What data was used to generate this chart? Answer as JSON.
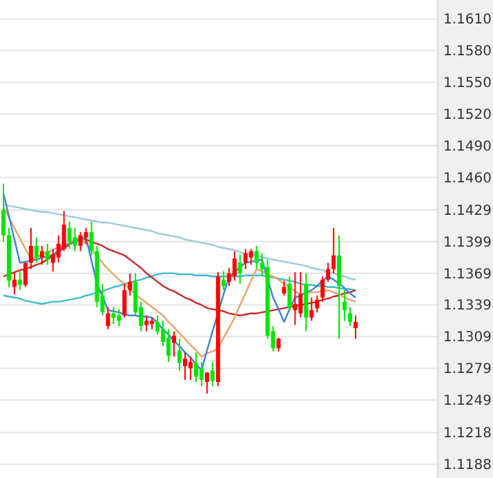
{
  "chart_data": {
    "type": "candlestick",
    "categories": [
      null,
      null,
      null,
      null,
      null,
      null,
      null,
      null,
      null,
      null,
      null,
      null,
      null,
      null,
      null,
      null,
      null,
      null,
      null,
      null,
      null,
      null,
      null,
      null,
      null,
      null,
      null,
      null,
      null,
      null,
      null,
      null,
      null,
      null,
      null,
      null,
      null,
      null,
      null,
      null,
      null,
      null,
      null,
      null,
      null,
      null,
      null,
      null,
      null,
      null,
      null,
      null,
      null,
      null,
      null,
      null,
      null,
      null,
      null,
      null,
      null,
      null,
      null,
      null,
      null
    ],
    "ohlc": [
      [
        1.1429,
        1.1454,
        1.1399,
        1.1405
      ],
      [
        1.1405,
        1.1412,
        1.1356,
        1.1362
      ],
      [
        1.1356,
        1.1369,
        1.1349,
        1.1363
      ],
      [
        1.1363,
        1.1371,
        1.1353,
        1.1358
      ],
      [
        1.1358,
        1.1379,
        1.1356,
        1.1379
      ],
      [
        1.1379,
        1.1412,
        1.1373,
        1.1395
      ],
      [
        1.1395,
        1.1403,
        1.1379,
        1.1384
      ],
      [
        1.1384,
        1.1395,
        1.1377,
        1.139
      ],
      [
        1.139,
        1.1397,
        1.1377,
        1.1382
      ],
      [
        1.1379,
        1.1392,
        1.1371,
        1.1387
      ],
      [
        1.1384,
        1.1405,
        1.1379,
        1.1397
      ],
      [
        1.1392,
        1.1428,
        1.139,
        1.1415
      ],
      [
        1.1412,
        1.1418,
        1.1392,
        1.1399
      ],
      [
        1.1403,
        1.1412,
        1.139,
        1.1395
      ],
      [
        1.1395,
        1.1408,
        1.139,
        1.1405
      ],
      [
        1.1403,
        1.1412,
        1.1397,
        1.1408
      ],
      [
        1.1408,
        1.1418,
        1.1386,
        1.139
      ],
      [
        1.139,
        1.1395,
        1.1337,
        1.1342
      ],
      [
        1.1348,
        1.1359,
        1.1329,
        1.1332
      ],
      [
        1.1319,
        1.1337,
        1.1316,
        1.1331
      ],
      [
        1.1331,
        1.1337,
        1.1321,
        1.1327
      ],
      [
        1.1329,
        1.1335,
        1.1319,
        1.1324
      ],
      [
        1.1329,
        1.1359,
        1.1327,
        1.1353
      ],
      [
        1.1353,
        1.1369,
        1.1348,
        1.1361
      ],
      [
        1.1361,
        1.1369,
        1.1329,
        1.1332
      ],
      [
        1.1337,
        1.1342,
        1.1314,
        1.1319
      ],
      [
        1.132,
        1.1329,
        1.1314,
        1.1324
      ],
      [
        1.1321,
        1.1327,
        1.1316,
        1.1324
      ],
      [
        1.1323,
        1.1329,
        1.1311,
        1.1314
      ],
      [
        1.1316,
        1.1324,
        1.13,
        1.1304
      ],
      [
        1.1308,
        1.1316,
        1.1285,
        1.1291
      ],
      [
        1.1303,
        1.1314,
        1.129,
        1.131
      ],
      [
        1.1296,
        1.1307,
        1.1277,
        1.1284
      ],
      [
        1.1281,
        1.1294,
        1.1268,
        1.1288
      ],
      [
        1.1279,
        1.129,
        1.1268,
        1.1285
      ],
      [
        1.1284,
        1.1294,
        1.1266,
        1.1271
      ],
      [
        1.1279,
        1.1285,
        1.1262,
        1.1268
      ],
      [
        1.1266,
        1.1275,
        1.1255,
        1.1275
      ],
      [
        1.1277,
        1.1285,
        1.1262,
        1.1267
      ],
      [
        1.1266,
        1.137,
        1.1262,
        1.1366
      ],
      [
        1.1363,
        1.1371,
        1.1353,
        1.1357
      ],
      [
        1.1361,
        1.1374,
        1.1357,
        1.1369
      ],
      [
        1.1366,
        1.139,
        1.1362,
        1.1383
      ],
      [
        1.1379,
        1.1387,
        1.1359,
        1.1369
      ],
      [
        1.1379,
        1.1392,
        1.1373,
        1.1388
      ],
      [
        1.1384,
        1.1392,
        1.1377,
        1.139
      ],
      [
        1.139,
        1.1395,
        1.1373,
        1.1379
      ],
      [
        1.1379,
        1.1388,
        1.1366,
        1.1373
      ],
      [
        1.1375,
        1.1382,
        1.1307,
        1.131
      ],
      [
        1.1314,
        1.1319,
        1.1295,
        1.1298
      ],
      [
        1.1298,
        1.1308,
        1.1295,
        1.1307
      ],
      [
        1.135,
        1.1362,
        1.1348,
        1.1356
      ],
      [
        1.1359,
        1.1366,
        1.1334,
        1.1336
      ],
      [
        1.1334,
        1.137,
        1.132,
        1.134
      ],
      [
        1.1331,
        1.137,
        1.1327,
        1.1349
      ],
      [
        1.1359,
        1.1369,
        1.1314,
        1.1327
      ],
      [
        1.1327,
        1.1346,
        1.1324,
        1.1334
      ],
      [
        1.1336,
        1.1348,
        1.1332,
        1.1344
      ],
      [
        1.1346,
        1.1366,
        1.1342,
        1.1363
      ],
      [
        1.1363,
        1.1379,
        1.1361,
        1.1373
      ],
      [
        1.1373,
        1.1412,
        1.1369,
        1.1386
      ],
      [
        1.1386,
        1.1405,
        1.1307,
        1.1357
      ],
      [
        1.1342,
        1.1353,
        1.1324,
        1.1334
      ],
      [
        1.1331,
        1.1337,
        1.1319,
        1.1323
      ],
      [
        1.1317,
        1.1329,
        1.1307,
        1.1323
      ]
    ],
    "colors": [
      "#00e600",
      "#00e600",
      "#ff0000",
      "#00e600",
      "#ff0000",
      "#ff0000",
      "#00e600",
      "#ff0000",
      "#00e600",
      "#ff0000",
      "#ff0000",
      "#ff0000",
      "#00e600",
      "#00e600",
      "#ff0000",
      "#ff0000",
      "#00e600",
      "#00e600",
      "#00e600",
      "#ff0000",
      "#00e600",
      "#00e600",
      "#ff0000",
      "#ff0000",
      "#00e600",
      "#00e600",
      "#ff0000",
      "#ff0000",
      "#00e600",
      "#00e600",
      "#00e600",
      "#ff0000",
      "#00e600",
      "#ff0000",
      "#ff0000",
      "#00e600",
      "#00e600",
      "#ff0000",
      "#00e600",
      "#ff0000",
      "#00e600",
      "#ff0000",
      "#ff0000",
      "#00e600",
      "#ff0000",
      "#ff0000",
      "#00e600",
      "#00e600",
      "#00e600",
      "#00e600",
      "#ff0000",
      "#ff0000",
      "#00e600",
      "#ff0000",
      "#ff0000",
      "#00e600",
      "#ff0000",
      "#ff0000",
      "#ff0000",
      "#ff0000",
      "#ff0000",
      "#00e600",
      "#00e600",
      "#00e600",
      "#ff0000"
    ],
    "series": [
      {
        "type": "line",
        "color": "#9cc8dc",
        "values": [
          1.1434,
          1.1433,
          1.1432,
          1.1431,
          1.143,
          1.1429,
          1.1428,
          1.1427,
          1.1427,
          1.1426,
          1.1425,
          1.1424,
          1.1423,
          1.1422,
          1.1421,
          1.142,
          1.1419,
          1.1418,
          1.1417,
          1.1417,
          1.1416,
          1.1415,
          1.1414,
          1.1413,
          1.1412,
          1.1411,
          1.141,
          1.1409,
          1.1407,
          1.1406,
          1.1405,
          1.1404,
          1.1403,
          1.1401,
          1.14,
          1.1399,
          1.1398,
          1.1397,
          1.1396,
          1.1394,
          1.1393,
          1.1392,
          1.1391,
          1.1389,
          1.1388,
          1.1387,
          1.1386,
          1.1384,
          1.1383,
          1.1382,
          1.1381,
          1.138,
          1.1379,
          1.1378,
          1.1377,
          1.1376,
          1.1374,
          1.1373,
          1.1372,
          1.137,
          1.1369,
          1.1367,
          1.1366,
          1.1364,
          1.1363
        ]
      },
      {
        "type": "line",
        "color": "#3cbccc",
        "values": [
          1.1348,
          1.1347,
          1.1346,
          1.1345,
          1.1343,
          1.1342,
          1.1341,
          1.134,
          1.1341,
          1.1342,
          1.1342,
          1.1343,
          1.1344,
          1.1345,
          1.1346,
          1.1348,
          1.1349,
          1.1351,
          1.1352,
          1.1354,
          1.1356,
          1.1357,
          1.1359,
          1.136,
          1.1362,
          1.1363,
          1.1365,
          1.1366,
          1.1368,
          1.1369,
          1.1369,
          1.1369,
          1.1368,
          1.1368,
          1.1368,
          1.1367,
          1.1367,
          1.1367,
          1.1366,
          1.1366,
          1.1366,
          1.1366,
          1.1366,
          1.1366,
          1.1367,
          1.1367,
          1.1367,
          1.1367,
          1.1366,
          1.1365,
          1.1364,
          1.1363,
          1.1362,
          1.1361,
          1.1359,
          1.1358,
          1.1358,
          1.1357,
          1.1357,
          1.1356,
          1.1356,
          1.1355,
          1.1354,
          1.1354,
          1.1353
        ]
      },
      {
        "type": "line",
        "color": "#c8282a",
        "values": [
          1.1366,
          1.1368,
          1.137,
          1.1372,
          1.1373,
          1.1375,
          1.1377,
          1.1379,
          1.1382,
          1.1386,
          1.1389,
          1.1393,
          1.1396,
          1.14,
          1.1403,
          1.1401,
          1.1399,
          1.1397,
          1.1395,
          1.1392,
          1.139,
          1.1388,
          1.1386,
          1.1382,
          1.1378,
          1.1374,
          1.1369,
          1.1365,
          1.1361,
          1.1357,
          1.1354,
          1.1352,
          1.1349,
          1.1346,
          1.1344,
          1.1341,
          1.1339,
          1.1336,
          1.1335,
          1.1334,
          1.1333,
          1.1331,
          1.133,
          1.1329,
          1.133,
          1.1331,
          1.1331,
          1.1332,
          1.1333,
          1.1334,
          1.1335,
          1.1336,
          1.1337,
          1.1338,
          1.1339,
          1.134,
          1.1341,
          1.1342,
          1.1344,
          1.1345,
          1.1347,
          1.1348,
          1.135,
          1.1351,
          1.1353
        ]
      },
      {
        "type": "line",
        "color": "#e8a468",
        "values": [
          1.1432,
          1.1422,
          1.1412,
          1.1402,
          1.1392,
          1.1382,
          1.1384,
          1.1387,
          1.1389,
          1.1391,
          1.1394,
          1.1396,
          1.1398,
          1.1401,
          1.1403,
          1.1397,
          1.1391,
          1.1385,
          1.1379,
          1.1373,
          1.1368,
          1.1363,
          1.1359,
          1.1354,
          1.1349,
          1.1345,
          1.1341,
          1.1337,
          1.1333,
          1.1329,
          1.1323,
          1.1318,
          1.1312,
          1.1307,
          1.1301,
          1.1296,
          1.129,
          1.1293,
          1.1295,
          1.1298,
          1.1308,
          1.1317,
          1.1327,
          1.1339,
          1.135,
          1.1362,
          1.1373,
          1.1371,
          1.1368,
          1.1366,
          1.1363,
          1.1359,
          1.1356,
          1.1352,
          1.1349,
          1.135,
          1.1351,
          1.1351,
          1.1352,
          1.1353,
          1.1351,
          1.1349,
          1.1346,
          1.1344,
          1.1342
        ]
      },
      {
        "type": "line",
        "color": "#3c82d8",
        "values": [
          1.1445,
          1.1423,
          1.1401,
          1.1379,
          1.138,
          1.1381,
          1.1382,
          1.1384,
          1.1385,
          1.1386,
          1.1391,
          1.1395,
          1.1397,
          1.1399,
          1.1401,
          1.1403,
          1.1381,
          1.1359,
          1.1347,
          1.1334,
          1.1333,
          1.1332,
          1.133,
          1.1329,
          1.1329,
          1.1328,
          1.1328,
          1.1327,
          1.1322,
          1.1316,
          1.1311,
          1.1305,
          1.13,
          1.1294,
          1.1289,
          1.1283,
          1.1277,
          1.1296,
          1.1314,
          null,
          1.1349,
          1.1366,
          1.137,
          1.1375,
          1.1379,
          1.138,
          1.1381,
          1.1382,
          1.1364,
          1.1346,
          1.1335,
          1.1323,
          1.1335,
          1.1346,
          1.1348,
          1.1351,
          1.1353,
          1.1357,
          1.1362,
          1.1366,
          1.1363,
          1.1359,
          1.1355,
          1.135,
          1.1346
        ]
      }
    ],
    "ylim": [
      1.1175,
      1.1628
    ],
    "yticks": [
      {
        "value": 1.161,
        "label": "1.1610"
      },
      {
        "value": 1.158,
        "label": "1.1580"
      },
      {
        "value": 1.155,
        "label": "1.1550"
      },
      {
        "value": 1.152,
        "label": "1.1520"
      },
      {
        "value": 1.149,
        "label": "1.1490"
      },
      {
        "value": 1.146,
        "label": "1.1460"
      },
      1.1429,
      1.1399,
      1.1369,
      1.1339,
      1.1309,
      1.1279,
      1.1249,
      1.1218,
      1.1188
    ],
    "grid": "y",
    "tick_labels": "y"
  }
}
